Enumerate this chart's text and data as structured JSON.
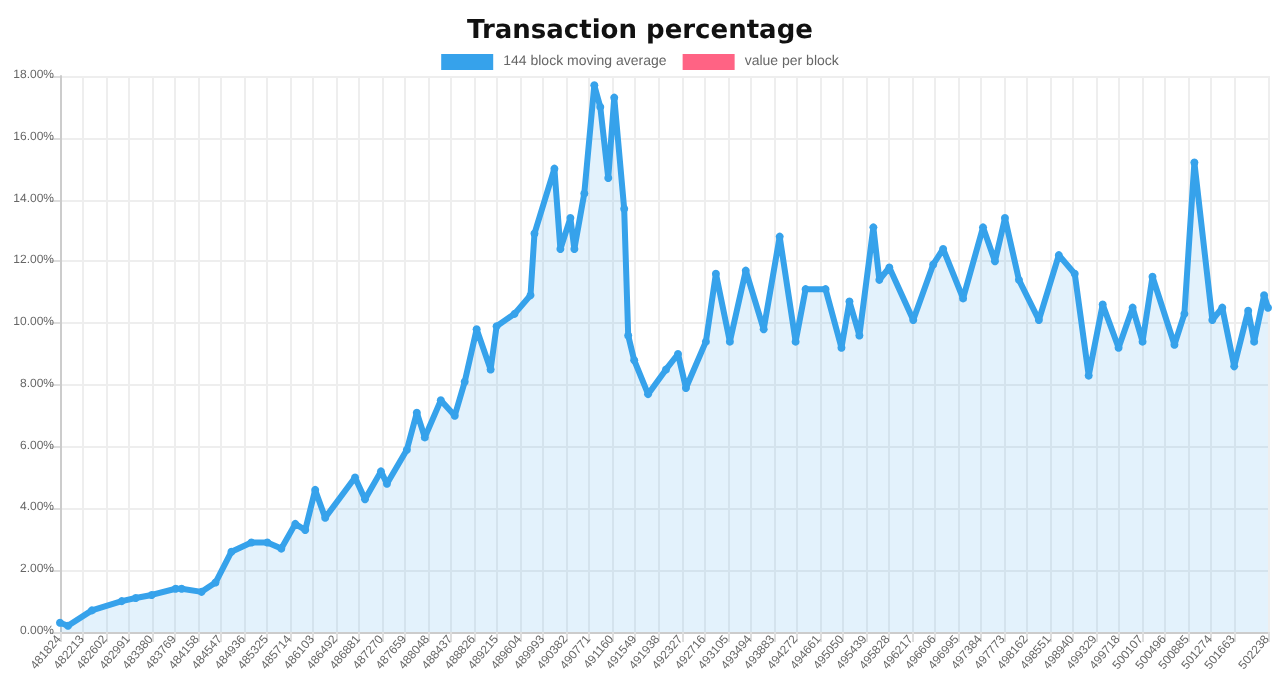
{
  "chart_data": {
    "type": "area",
    "title": "Transaction percentage",
    "legend": "top",
    "grid": true,
    "marker": "circle",
    "x": [
      481824,
      481959,
      482363,
      482868,
      483104,
      483374,
      483778,
      483879,
      484216,
      484452,
      484721,
      485058,
      485328,
      485564,
      485800,
      485968,
      486136,
      486305,
      486810,
      486978,
      487248,
      487349,
      487686,
      487854,
      487989,
      488259,
      488495,
      488663,
      488865,
      489101,
      489202,
      489505,
      489775,
      489842,
      490179,
      490280,
      490449,
      490516,
      490684,
      490853,
      490954,
      491089,
      491190,
      491358,
      491426,
      491527,
      491762,
      492065,
      492268,
      492402,
      492739,
      492908,
      493144,
      493413,
      493716,
      493986,
      494255,
      494424,
      494761,
      495030,
      495165,
      495333,
      495569,
      495670,
      495839,
      496243,
      496580,
      496748,
      497085,
      497422,
      497624,
      497793,
      498029,
      498366,
      498703,
      498972,
      499208,
      499444,
      499713,
      499950,
      500118,
      500286,
      500657,
      500825,
      500994,
      501297,
      501465,
      501667,
      501903,
      502004,
      502172,
      502238
    ],
    "series": [
      {
        "name": "144 block moving average",
        "color": "#36a2eb",
        "values": [
          0.3,
          0.2,
          0.7,
          1.0,
          1.1,
          1.2,
          1.4,
          1.4,
          1.3,
          1.6,
          2.6,
          2.9,
          2.9,
          2.7,
          3.5,
          3.3,
          4.6,
          3.7,
          5.0,
          4.3,
          5.2,
          4.8,
          5.9,
          7.1,
          6.3,
          7.5,
          7.0,
          8.1,
          9.8,
          8.5,
          9.9,
          10.3,
          10.9,
          12.9,
          15.0,
          12.4,
          13.4,
          12.4,
          14.2,
          17.7,
          17.0,
          14.7,
          17.3,
          13.7,
          9.6,
          8.8,
          7.7,
          8.5,
          9.0,
          7.9,
          9.4,
          11.6,
          9.4,
          11.7,
          9.8,
          12.8,
          9.4,
          11.1,
          11.1,
          9.2,
          10.7,
          9.6,
          13.1,
          11.4,
          11.8,
          10.1,
          11.9,
          12.4,
          10.8,
          13.1,
          12.0,
          13.4,
          11.4,
          10.1,
          12.2,
          11.6,
          8.3,
          10.6,
          9.2,
          10.5,
          9.4,
          11.5,
          9.3,
          10.3,
          15.2,
          10.1,
          10.5,
          8.6,
          10.4,
          9.4,
          10.9,
          10.5
        ]
      },
      {
        "name": "value per block",
        "color": "#ff6384",
        "values": [
          null,
          null,
          null,
          null,
          null,
          null,
          null,
          null,
          null,
          null,
          null,
          null,
          null,
          null,
          null,
          null,
          null,
          null,
          null,
          null,
          null,
          null,
          null,
          null,
          null,
          null,
          null,
          null,
          null,
          null,
          null,
          null,
          null,
          null,
          null,
          null,
          null,
          null,
          null,
          null,
          null,
          null,
          null,
          null,
          null,
          null,
          null,
          null,
          null,
          null,
          null,
          null,
          null,
          null,
          null,
          null,
          null,
          null,
          null,
          null,
          null,
          null,
          null,
          null,
          null,
          null,
          null,
          null,
          null,
          null,
          null,
          null,
          null,
          null,
          null,
          null,
          null,
          null,
          null,
          null,
          null,
          null,
          null,
          null,
          null,
          null,
          null,
          null,
          null,
          null,
          null,
          null
        ]
      }
    ],
    "xlim": [
      481824,
      502238
    ],
    "xticks": [
      481824,
      482213,
      482602,
      482991,
      483380,
      483769,
      484158,
      484547,
      484936,
      485325,
      485714,
      486103,
      486492,
      486881,
      487270,
      487659,
      488048,
      488437,
      488826,
      489215,
      489604,
      489993,
      490382,
      490771,
      491160,
      491549,
      491938,
      492327,
      492716,
      493105,
      493494,
      493883,
      494272,
      494661,
      495050,
      495439,
      495828,
      496217,
      496606,
      496995,
      497384,
      497773,
      498162,
      498551,
      498940,
      499329,
      499718,
      500107,
      500496,
      500885,
      501274,
      501663,
      502238
    ],
    "ylim": [
      0,
      18
    ],
    "yticks": [
      {
        "value": 0,
        "label": "0.00%"
      },
      {
        "value": 2,
        "label": "2.00%"
      },
      {
        "value": 4,
        "label": "4.00%"
      },
      {
        "value": 6,
        "label": "6.00%"
      },
      {
        "value": 8,
        "label": "8.00%"
      },
      {
        "value": 10,
        "label": "10.00%"
      },
      {
        "value": 12,
        "label": "12.00%"
      },
      {
        "value": 14,
        "label": "14.00%"
      },
      {
        "value": 16,
        "label": "16.00%"
      },
      {
        "value": 18,
        "label": "18.00%"
      }
    ]
  }
}
